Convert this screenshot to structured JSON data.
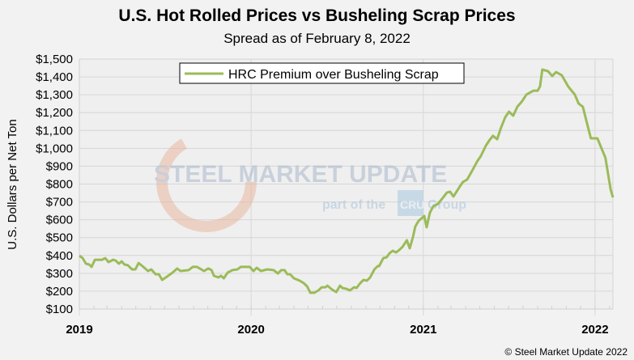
{
  "chart_data": {
    "type": "line",
    "title": "U.S. Hot Rolled Prices vs Busheling Scrap Prices",
    "subtitle": "Spread as of February 8, 2022",
    "xlabel": "",
    "ylabel": "U.S. Dollars per Net Ton",
    "xlim": [
      "2019-01-01",
      "2022-02-08"
    ],
    "ylim": [
      100,
      1500
    ],
    "yticks": [
      "$100",
      "$200",
      "$300",
      "$400",
      "$500",
      "$600",
      "$700",
      "$800",
      "$900",
      "$1,000",
      "$1,100",
      "$1,200",
      "$1,300",
      "$1,400",
      "$1,500"
    ],
    "xticks": [
      {
        "label": "2019",
        "date": "2019-01-01"
      },
      {
        "label": "2020",
        "date": "2020-01-01"
      },
      {
        "label": "2021",
        "date": "2021-01-01"
      },
      {
        "label": "2022",
        "date": "2022-01-01"
      }
    ],
    "grid": true,
    "legend_position": "top-center",
    "series": [
      {
        "name": "HRC Premium over Busheling Scrap",
        "color": "#9bbb59",
        "x": [
          "2019-01-01",
          "2019-01-08",
          "2019-01-15",
          "2019-01-22",
          "2019-01-27",
          "2019-02-03",
          "2019-02-18",
          "2019-02-25",
          "2019-03-04",
          "2019-03-14",
          "2019-03-19",
          "2019-03-26",
          "2019-04-01",
          "2019-04-07",
          "2019-04-14",
          "2019-04-23",
          "2019-04-30",
          "2019-05-07",
          "2019-05-17",
          "2019-05-27",
          "2019-06-03",
          "2019-06-12",
          "2019-06-19",
          "2019-06-26",
          "2019-07-04",
          "2019-07-18",
          "2019-07-28",
          "2019-08-04",
          "2019-08-21",
          "2019-08-30",
          "2019-09-08",
          "2019-09-23",
          "2019-10-02",
          "2019-10-09",
          "2019-10-14",
          "2019-10-24",
          "2019-10-29",
          "2019-11-04",
          "2019-11-12",
          "2019-11-22",
          "2019-12-03",
          "2019-12-10",
          "2019-12-29",
          "2020-01-06",
          "2020-01-13",
          "2020-01-22",
          "2020-02-04",
          "2020-02-18",
          "2020-02-27",
          "2020-03-05",
          "2020-03-12",
          "2020-03-18",
          "2020-03-24",
          "2020-04-01",
          "2020-04-13",
          "2020-04-22",
          "2020-04-29",
          "2020-05-06",
          "2020-05-14",
          "2020-05-23",
          "2020-05-30",
          "2020-06-07",
          "2020-06-11",
          "2020-06-21",
          "2020-06-30",
          "2020-07-08",
          "2020-07-13",
          "2020-07-22",
          "2020-07-29",
          "2020-08-07",
          "2020-08-12",
          "2020-08-20",
          "2020-08-27",
          "2020-09-03",
          "2020-09-10",
          "2020-09-19",
          "2020-09-26",
          "2020-09-29",
          "2020-10-08",
          "2020-10-15",
          "2020-10-21",
          "2020-10-28",
          "2020-11-04",
          "2020-11-11",
          "2020-11-18",
          "2020-11-27",
          "2020-12-03",
          "2020-12-10",
          "2020-12-15",
          "2020-12-22",
          "2021-01-03",
          "2021-01-08",
          "2021-01-15",
          "2021-01-22",
          "2021-02-01",
          "2021-02-11",
          "2021-02-20",
          "2021-02-27",
          "2021-03-06",
          "2021-03-18",
          "2021-03-26",
          "2021-04-04",
          "2021-04-13",
          "2021-04-25",
          "2021-05-03",
          "2021-05-14",
          "2021-05-22",
          "2021-05-29",
          "2021-06-07",
          "2021-06-15",
          "2021-06-24",
          "2021-07-02",
          "2021-07-11",
          "2021-07-20",
          "2021-07-30",
          "2021-08-08",
          "2021-08-23",
          "2021-09-01",
          "2021-09-06",
          "2021-09-11",
          "2021-09-23",
          "2021-10-02",
          "2021-10-10",
          "2021-10-22",
          "2021-11-05",
          "2021-11-19",
          "2021-11-27",
          "2021-12-06",
          "2021-12-23",
          "2022-01-06",
          "2022-01-23",
          "2022-02-03",
          "2022-02-08"
        ],
        "values": [
          399,
          385,
          354,
          349,
          336,
          376,
          376,
          385,
          363,
          376,
          372,
          354,
          367,
          349,
          345,
          322,
          322,
          358,
          336,
          313,
          322,
          295,
          295,
          263,
          277,
          304,
          327,
          313,
          318,
          336,
          336,
          313,
          327,
          318,
          286,
          277,
          286,
          272,
          304,
          318,
          322,
          336,
          336,
          313,
          331,
          313,
          322,
          318,
          299,
          318,
          318,
          295,
          295,
          272,
          259,
          245,
          227,
          191,
          191,
          204,
          222,
          222,
          231,
          209,
          195,
          231,
          218,
          213,
          204,
          222,
          218,
          245,
          263,
          259,
          277,
          322,
          340,
          340,
          385,
          390,
          412,
          426,
          417,
          431,
          449,
          485,
          440,
          503,
          562,
          594,
          621,
          558,
          639,
          675,
          689,
          721,
          752,
          757,
          730,
          780,
          811,
          825,
          866,
          925,
          956,
          1015,
          1047,
          1070,
          1051,
          1115,
          1174,
          1205,
          1183,
          1233,
          1264,
          1301,
          1323,
          1323,
          1346,
          1441,
          1432,
          1405,
          1427,
          1410,
          1346,
          1301,
          1251,
          1233,
          1056,
          1056,
          947,
          771,
          725
        ]
      }
    ]
  },
  "watermark": {
    "brand": "STEEL MARKET UPDATE",
    "tagline_pre": "part of the",
    "tagline_logo": "CRU",
    "tagline_post": "Group"
  },
  "copyright": "© Steel Market Update 2022"
}
